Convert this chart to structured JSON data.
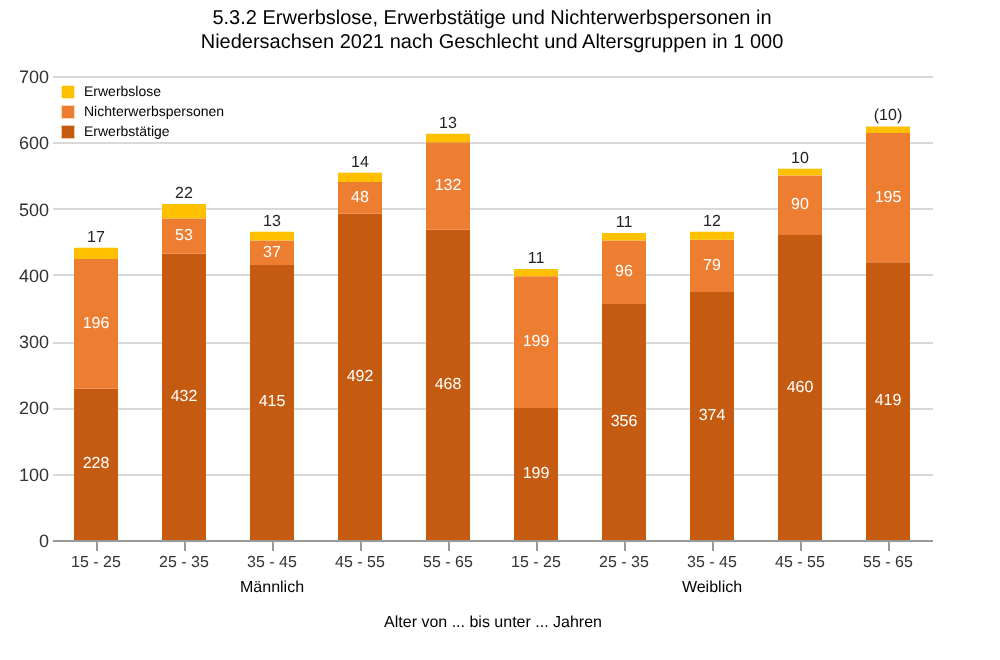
{
  "chart_data": {
    "type": "bar",
    "stacked": true,
    "title": "5.3.2 Erwerbslose, Erwerbstätige und Nichterwerbspersonen in Niedersachsen 2021 nach Geschlecht und Altersgruppen in 1 000",
    "xlabel": "Alter von ... bis unter ... Jahren",
    "categories": [
      "15 - 25",
      "25 - 35",
      "35 - 45",
      "45 - 55",
      "55 - 65",
      "15 - 25",
      "25 - 35",
      "35 - 45",
      "45 - 55",
      "55 - 65"
    ],
    "series": [
      {
        "name": "Erwerbstätige",
        "color": "#c55a11",
        "values": [
          228,
          432,
          415,
          492,
          468,
          199,
          356,
          374,
          460,
          419
        ],
        "value_labels": [
          "228",
          "432",
          "415",
          "492",
          "468",
          "199",
          "356",
          "374",
          "460",
          "419"
        ]
      },
      {
        "name": "Nichterwerbspersonen",
        "color": "#ed7d31",
        "values": [
          196,
          53,
          37,
          48,
          132,
          199,
          96,
          79,
          90,
          195
        ],
        "value_labels": [
          "196",
          "53",
          "37",
          "48",
          "132",
          "199",
          "96",
          "79",
          "90",
          "195"
        ]
      },
      {
        "name": "Erwerbslose",
        "color": "#ffc000",
        "values": [
          17,
          22,
          13,
          14,
          13,
          11,
          11,
          12,
          10,
          10
        ],
        "value_labels": [
          "17",
          "22",
          "13",
          "14",
          "13",
          "11",
          "11",
          "12",
          "10",
          "(10)"
        ]
      }
    ],
    "ylim": [
      0,
      700
    ],
    "yticks": [
      0,
      100,
      200,
      300,
      400,
      500,
      600,
      700
    ],
    "grid": "y",
    "legend": "top left",
    "annotations": [
      "Männlich",
      "Weiblich"
    ]
  }
}
